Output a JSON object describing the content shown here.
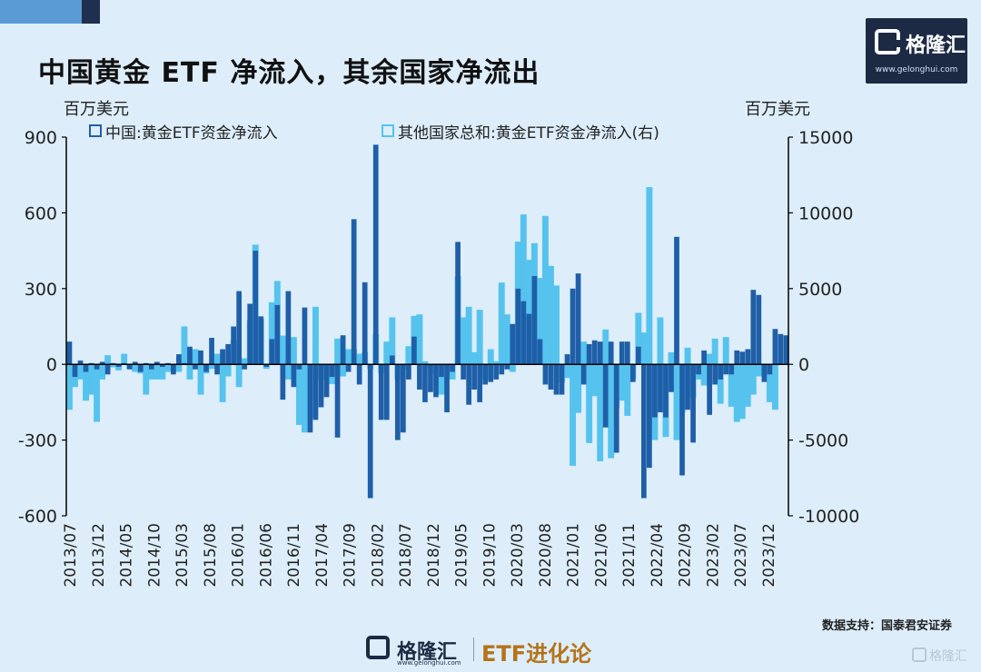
{
  "header": {
    "title": "中国黄金 ETF 净流入，其余国家净流出"
  },
  "logo": {
    "name": "格隆汇",
    "url": "www.gelonghui.com"
  },
  "footer": {
    "brand": "格隆汇",
    "url": "www.gelonghui.com",
    "subtitle": "ETF进化论"
  },
  "corner_watermark": "格隆汇",
  "source": "数据支持：国泰君安证券",
  "colors": {
    "china": "#1f5fa8",
    "others": "#55c3ee",
    "axis": "#000000",
    "background": "#ddeefa"
  },
  "chart_data": {
    "type": "bar",
    "title": "中国黄金 ETF 净流入，其余国家净流出",
    "ylabel_left": "百万美元",
    "ylabel_right": "百万美元",
    "ylim_left": [
      -600,
      900
    ],
    "ylim_right": [
      -10000,
      15000
    ],
    "yticks_left": [
      "900",
      "600",
      "300",
      "0",
      "-300",
      "-600"
    ],
    "yticks_right": [
      "15000",
      "10000",
      "5000",
      "0",
      "-5000",
      "-10000"
    ],
    "x_tick_labels": [
      "2013/07",
      "2013/12",
      "2014/05",
      "2014/10",
      "2015/03",
      "2015/08",
      "2016/01",
      "2016/06",
      "2016/11",
      "2017/04",
      "2017/09",
      "2018/02",
      "2018/07",
      "2018/12",
      "2019/05",
      "2019/10",
      "2020/03",
      "2020/08",
      "2021/01",
      "2021/06",
      "2021/11",
      "2022/04",
      "2022/09",
      "2023/02",
      "2023/07",
      "2023/12"
    ],
    "legend_position": "top",
    "start_month": "2013/07",
    "series": [
      {
        "name": "中国:黄金ETF资金净流入",
        "axis": "left",
        "values": [
          90,
          -50,
          15,
          -30,
          5,
          -20,
          10,
          -40,
          5,
          -10,
          5,
          -20,
          10,
          -30,
          5,
          -20,
          10,
          -10,
          5,
          -40,
          40,
          5,
          70,
          -20,
          55,
          -30,
          105,
          -40,
          60,
          80,
          150,
          290,
          -20,
          240,
          450,
          190,
          -10,
          100,
          235,
          -140,
          290,
          -90,
          -20,
          225,
          -270,
          -220,
          -170,
          -130,
          -50,
          -290,
          115,
          -30,
          575,
          -80,
          325,
          -530,
          870,
          -220,
          -220,
          35,
          -300,
          -270,
          -60,
          110,
          -100,
          -150,
          -110,
          -130,
          -50,
          -190,
          -30,
          485,
          -60,
          -160,
          -100,
          -150,
          -80,
          -70,
          -60,
          -40,
          -20,
          160,
          300,
          250,
          200,
          350,
          100,
          -80,
          -100,
          -120,
          -120,
          40,
          300,
          360,
          -80,
          80,
          95,
          90,
          -250,
          90,
          -350,
          90,
          90,
          -70,
          70,
          -530,
          -410,
          -210,
          -190,
          -210,
          -110,
          505,
          -440,
          -180,
          -310,
          -40,
          55,
          -200,
          -80,
          -60,
          -40,
          -40,
          55,
          50,
          60,
          295,
          275,
          -70,
          -40,
          140,
          120,
          115
        ]
      },
      {
        "name": "其他国家总和:黄金ETF资金净流入(右)",
        "axis": "right",
        "values": [
          -3000,
          -1500,
          -1000,
          -2400,
          -2000,
          -3800,
          -1000,
          600,
          -200,
          -400,
          700,
          -300,
          -500,
          -600,
          -2000,
          -1000,
          -1000,
          -1000,
          -500,
          -200,
          -500,
          2500,
          -1000,
          1000,
          -2000,
          -600,
          -300,
          700,
          -2500,
          -800,
          1600,
          -1500,
          400,
          2900,
          7900,
          3000,
          -300,
          4100,
          5500,
          1900,
          -1000,
          1800,
          -4000,
          -4500,
          -3500,
          3800,
          -1000,
          -600,
          -1300,
          1700,
          -800,
          1000,
          1000,
          700,
          800,
          -300,
          2000,
          -600,
          1500,
          3100,
          -1000,
          -300,
          1200,
          3200,
          3300,
          200,
          -200,
          -600,
          -2000,
          -400,
          -1000,
          5800,
          3100,
          3800,
          800,
          3600,
          -1000,
          1000,
          200,
          5400,
          3300,
          -500,
          8100,
          9900,
          6900,
          8000,
          5700,
          9800,
          6500,
          5200,
          -1200,
          -900,
          -6700,
          -3200,
          1500,
          -5200,
          -2100,
          -6400,
          2300,
          -6200,
          -2900,
          -2400,
          -3400,
          -1000,
          3400,
          2100,
          11700,
          -5000,
          3100,
          -4800,
          800,
          -5000,
          -3200,
          1100,
          -2200,
          -1000,
          -1400,
          700,
          1700,
          -2600,
          1800,
          -2800,
          -3800,
          -3600,
          -2800,
          -2000,
          -800,
          -600,
          -2500,
          -3000
        ]
      }
    ]
  }
}
